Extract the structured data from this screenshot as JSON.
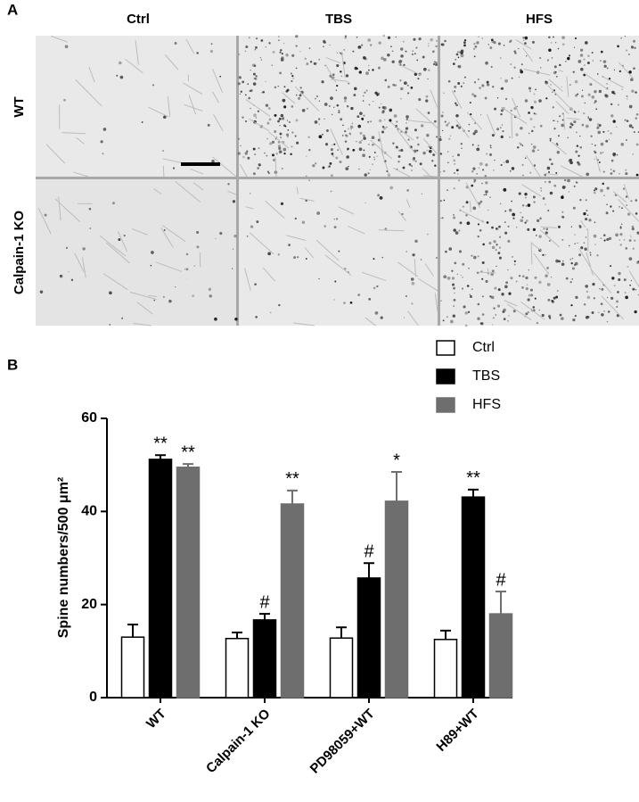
{
  "panel_a": {
    "label": "A",
    "columns": [
      "Ctrl",
      "TBS",
      "HFS"
    ],
    "rows": [
      "WT",
      "Calpain-1 KO"
    ]
  },
  "chart_data": {
    "type": "bar",
    "panel_label": "B",
    "y_label": "Spine numbers/500 μm²",
    "categories": [
      "WT",
      "Calpain-1 KO",
      "PD98059+WT",
      "H89+WT"
    ],
    "ylim": [
      0,
      60
    ],
    "yticks": [
      0,
      20,
      40,
      60
    ],
    "series": [
      {
        "name": "Ctrl",
        "color": "#ffffff",
        "values": [
          13.0,
          12.7,
          12.8,
          12.5
        ],
        "errors": [
          2.7,
          1.3,
          2.3,
          1.9
        ],
        "annotations": [
          null,
          null,
          null,
          null
        ]
      },
      {
        "name": "TBS",
        "color": "#000000",
        "values": [
          51.2,
          16.7,
          25.7,
          43.1
        ],
        "errors": [
          0.9,
          1.3,
          3.2,
          1.6
        ],
        "annotations": [
          "**",
          "#",
          "#",
          "**"
        ]
      },
      {
        "name": "HFS",
        "color": "#6e6e6e",
        "values": [
          49.5,
          41.6,
          42.2,
          18.0
        ],
        "errors": [
          0.7,
          2.9,
          6.3,
          4.8
        ],
        "annotations": [
          "**",
          "**",
          "*",
          "#"
        ]
      }
    ]
  }
}
